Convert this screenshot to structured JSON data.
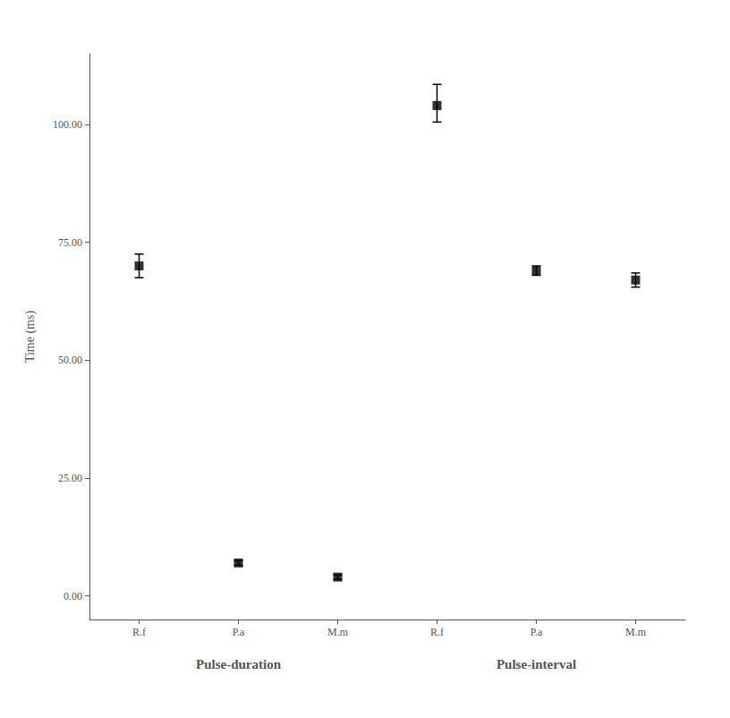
{
  "chart_data": {
    "type": "scatter",
    "ylabel": "Time (ms)",
    "groups": [
      {
        "name": "Pulse-duration",
        "categories": [
          "R.f",
          "P.a",
          "M.m"
        ],
        "values": [
          70.0,
          7.0,
          4.0
        ],
        "ci_lower": [
          2.5,
          0.5,
          0.5
        ],
        "ci_upper": [
          2.5,
          0.5,
          0.5
        ]
      },
      {
        "name": "Pulse-interval",
        "categories": [
          "R.f",
          "P.a",
          "M.m"
        ],
        "values": [
          104.0,
          69.0,
          67.0
        ],
        "ci_lower": [
          3.5,
          1.0,
          1.5
        ],
        "ci_upper": [
          4.5,
          1.0,
          1.5
        ]
      }
    ],
    "ylim": [
      -5,
      115
    ],
    "yticks": [
      {
        "value": 0,
        "label": "0.00"
      },
      {
        "value": 25,
        "label": "25.00"
      },
      {
        "value": 50,
        "label": "50.00"
      },
      {
        "value": 75,
        "label": "75.00"
      },
      {
        "value": 100,
        "label": "100.00"
      }
    ],
    "grid": false,
    "color": "#000000",
    "marker": "square"
  }
}
